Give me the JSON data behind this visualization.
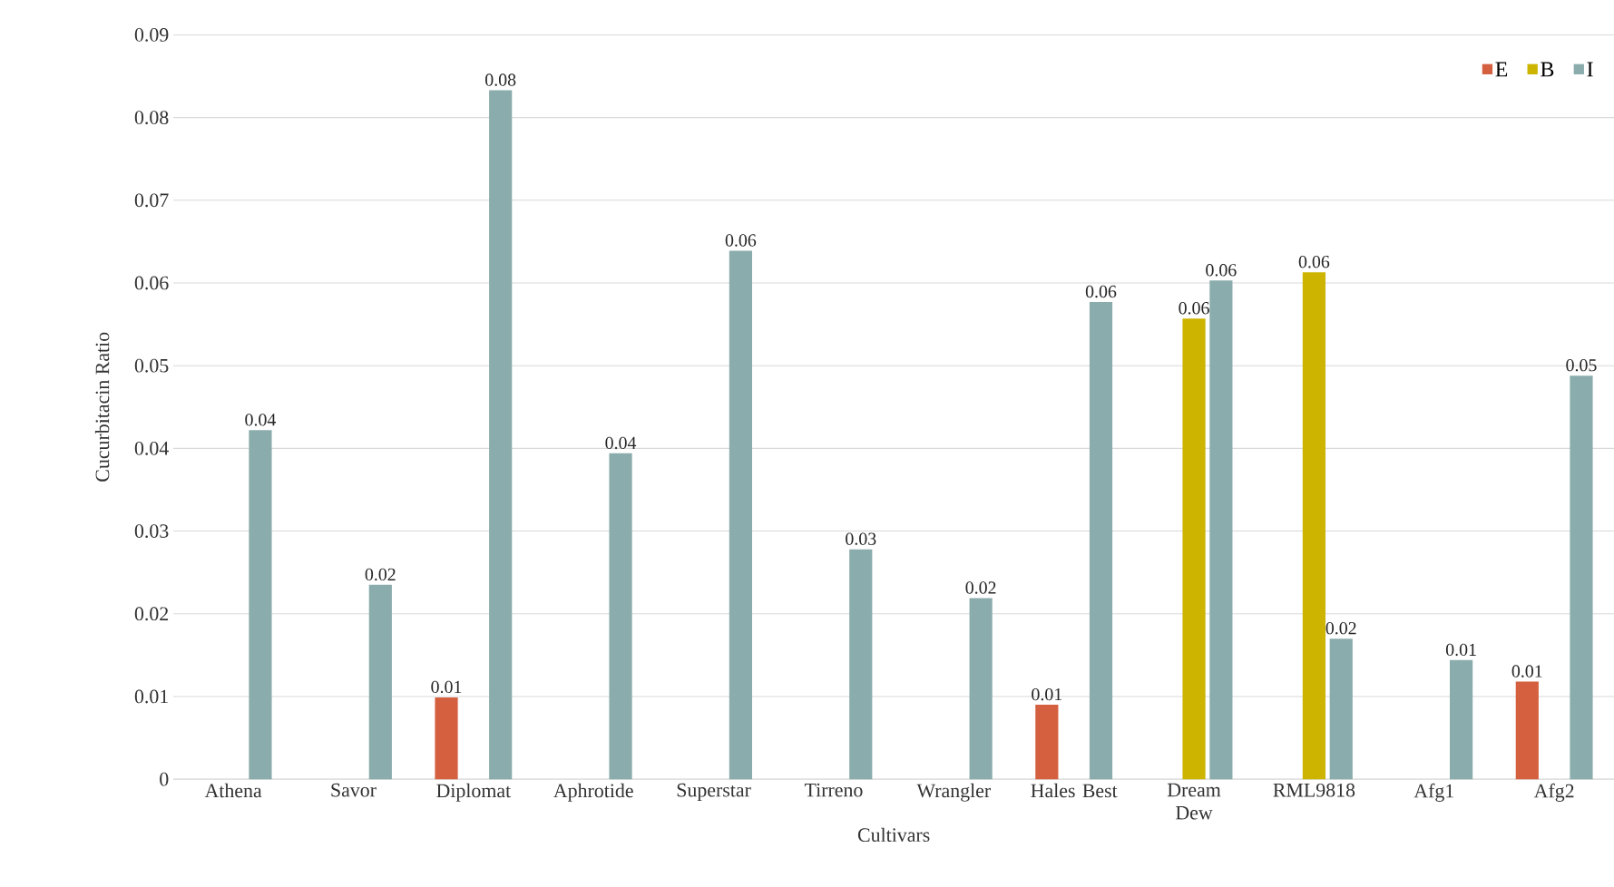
{
  "chart_data": {
    "type": "bar",
    "xlabel": "Cultivars",
    "ylabel": "Cucurbitacin Ratio",
    "categories": [
      "Athena",
      "Savor",
      "Diplomat",
      "Aphrotide",
      "Superstar",
      "Tirreno",
      "Wrangler",
      "Hales Best",
      "Dream Dew",
      "RML9818",
      "Afg1",
      "Afg2"
    ],
    "series": [
      {
        "name": "E",
        "color": "#d4603f",
        "values": [
          null,
          null,
          0.0099,
          null,
          null,
          null,
          null,
          0.009,
          null,
          null,
          null,
          0.0118
        ],
        "value_labels": [
          null,
          null,
          "0.01",
          null,
          null,
          null,
          null,
          "0.01",
          null,
          null,
          null,
          "0.01"
        ]
      },
      {
        "name": "B",
        "color": "#ccb400",
        "values": [
          null,
          null,
          null,
          null,
          null,
          null,
          null,
          null,
          0.0557,
          0.0613,
          null,
          null
        ],
        "value_labels": [
          null,
          null,
          null,
          null,
          null,
          null,
          null,
          null,
          "0.06",
          "0.06",
          null,
          null
        ]
      },
      {
        "name": "I",
        "color": "#8bacac",
        "values": [
          0.0422,
          0.0235,
          0.0833,
          0.0394,
          0.0639,
          0.0278,
          0.0219,
          0.0577,
          0.0603,
          0.017,
          0.0144,
          0.0488
        ],
        "value_labels": [
          "0.04",
          "0.02",
          "0.08",
          "0.04",
          "0.06",
          "0.03",
          "0.02",
          "0.06",
          "0.06",
          "0.02",
          "0.01",
          "0.05"
        ]
      }
    ],
    "ylim": [
      0,
      0.09
    ],
    "yticks": [
      0,
      0.01,
      0.02,
      0.03,
      0.04,
      0.05,
      0.06,
      0.07,
      0.08,
      0.09
    ],
    "grid": "y",
    "legend": "top right"
  }
}
